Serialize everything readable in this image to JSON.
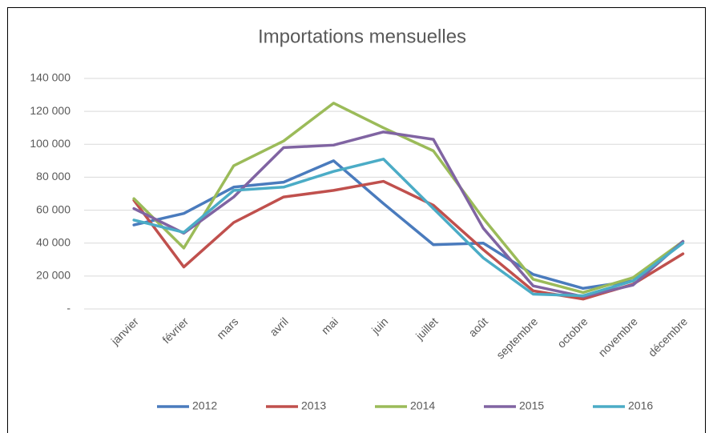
{
  "chart_data": {
    "type": "line",
    "title": "Importations mensuelles",
    "categories": [
      "janvier",
      "février",
      "mars",
      "avril",
      "mai",
      "juin",
      "juillet",
      "août",
      "septembre",
      "octobre",
      "novembre",
      "décembre"
    ],
    "series": [
      {
        "name": "2012",
        "color": "#4a7bbd",
        "values": [
          51000,
          58000,
          74000,
          77000,
          90000,
          64000,
          39000,
          40000,
          21000,
          12500,
          17000,
          41000
        ]
      },
      {
        "name": "2013",
        "color": "#c0504d",
        "values": [
          66000,
          25500,
          52500,
          68000,
          72000,
          77500,
          63000,
          36000,
          11000,
          6000,
          15000,
          33500
        ]
      },
      {
        "name": "2014",
        "color": "#9bbb59",
        "values": [
          67000,
          37000,
          87000,
          102000,
          125000,
          110000,
          96000,
          55000,
          18000,
          10000,
          19000,
          41000
        ]
      },
      {
        "name": "2015",
        "color": "#8064a2",
        "values": [
          61000,
          46000,
          68000,
          98000,
          99500,
          107500,
          103000,
          49000,
          14000,
          7500,
          14500,
          41000
        ]
      },
      {
        "name": "2016",
        "color": "#4bacc6",
        "values": [
          54000,
          46500,
          72000,
          74000,
          83500,
          91000,
          61000,
          31000,
          9000,
          8000,
          17000,
          40000
        ]
      }
    ],
    "ylim": [
      0,
      140000
    ],
    "yticks": [
      {
        "value": 0,
        "label": "-"
      },
      {
        "value": 20000,
        "label": "20 000"
      },
      {
        "value": 40000,
        "label": "40 000"
      },
      {
        "value": 60000,
        "label": "60 000"
      },
      {
        "value": 80000,
        "label": "80 000"
      },
      {
        "value": 100000,
        "label": "100 000"
      },
      {
        "value": 120000,
        "label": "120 000"
      },
      {
        "value": 140000,
        "label": "140 000"
      }
    ],
    "grid": true,
    "legend": "bottom"
  }
}
